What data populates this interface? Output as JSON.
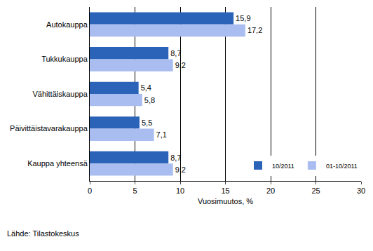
{
  "chart_data": {
    "type": "bar",
    "orientation": "horizontal",
    "categories": [
      "Autokauppa",
      "Tukkukauppa",
      "Vähittäiskauppa",
      "Päivittäistavarakauppa",
      "Kauppa yhteensä"
    ],
    "series": [
      {
        "name": "10/2011",
        "color": "#2b63b9",
        "values": [
          15.9,
          8.7,
          5.4,
          5.5,
          8.7
        ],
        "value_labels": [
          "15,9",
          "8,7",
          "5,4",
          "5,5",
          "8,7"
        ]
      },
      {
        "name": "01-10/2011",
        "color": "#a9bdf0",
        "values": [
          17.2,
          9.2,
          5.8,
          7.1,
          9.2
        ],
        "value_labels": [
          "17,2",
          "9,2",
          "5,8",
          "7,1",
          "9,2"
        ]
      }
    ],
    "x_label": "Vuosimuutos, %",
    "xlim": [
      0,
      30
    ],
    "xticks": [
      0,
      5,
      10,
      15,
      20,
      25,
      30
    ],
    "grid": true,
    "legend": "bottom right",
    "data_labels": true,
    "annotations": [
      "Lähde: Tilastokeskus"
    ]
  }
}
